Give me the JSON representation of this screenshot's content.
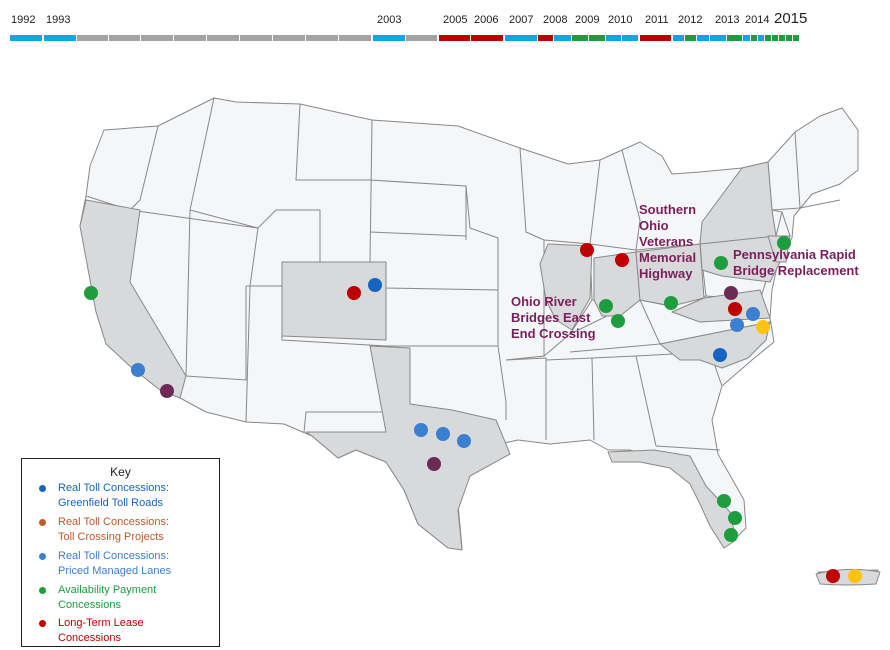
{
  "colors": {
    "greenfield": "#1565c0",
    "crossing": "#c0582a",
    "managed_lanes": "#3b7fd0",
    "availability": "#1e9d3f",
    "lease": "#c00000",
    "callout": "#7b1f5c",
    "state_fill": "#f5f6f8",
    "state_highlight": "#d8d9da",
    "state_border": "#888888",
    "timeline_blue": "#0ea5e9",
    "timeline_gray": "#a3a3a3",
    "timeline_red": "#c00000",
    "timeline_green": "#1e9d3f"
  },
  "timeline": {
    "years": [
      "1992",
      "1993",
      "2003",
      "2005",
      "2006",
      "2007",
      "2008",
      "2009",
      "2010",
      "2011",
      "2012",
      "2013",
      "2014",
      "2015"
    ],
    "current_year": "2015"
  },
  "callouts": {
    "southern_ohio": "Southern Ohio Veterans Memorial Highway",
    "ohio_river": "Ohio River Bridges East End Crossing",
    "pennsylvania": "Pennsylvania Rapid Bridge Replacement"
  },
  "key": {
    "title": "Key",
    "items": [
      {
        "label": "Real Toll Concessions: Greenfield Toll Roads",
        "color": "#1565c0"
      },
      {
        "label": "Real Toll Concessions: Toll Crossing Projects",
        "color": "#c0582a"
      },
      {
        "label": "Real Toll Concessions: Priced Managed Lanes",
        "color": "#3b7fd0"
      },
      {
        "label": "Availability Payment Concessions",
        "color": "#1e9d3f"
      },
      {
        "label": "Long-Term Lease Concessions",
        "color": "#c00000"
      }
    ]
  },
  "map_points": [
    {
      "state": "California",
      "category": "availability"
    },
    {
      "state": "California",
      "category": "managed_lanes"
    },
    {
      "state": "California",
      "category": "crossing"
    },
    {
      "state": "Colorado",
      "category": "lease"
    },
    {
      "state": "Colorado",
      "category": "greenfield"
    },
    {
      "state": "Texas",
      "category": "managed_lanes"
    },
    {
      "state": "Texas",
      "category": "managed_lanes"
    },
    {
      "state": "Texas",
      "category": "managed_lanes"
    },
    {
      "state": "Texas",
      "category": "crossing"
    },
    {
      "state": "Illinois",
      "category": "lease"
    },
    {
      "state": "Indiana",
      "category": "lease"
    },
    {
      "state": "Indiana",
      "category": "availability"
    },
    {
      "state": "Indiana",
      "category": "availability"
    },
    {
      "state": "Ohio",
      "category": "availability"
    },
    {
      "state": "Pennsylvania",
      "category": "availability"
    },
    {
      "state": "New Jersey",
      "category": "availability"
    },
    {
      "state": "Virginia",
      "category": "crossing"
    },
    {
      "state": "Virginia",
      "category": "lease"
    },
    {
      "state": "Virginia",
      "category": "managed_lanes"
    },
    {
      "state": "Virginia",
      "category": "managed_lanes"
    },
    {
      "state": "Virginia",
      "category": "toll_crossing_orange"
    },
    {
      "state": "North Carolina",
      "category": "greenfield"
    },
    {
      "state": "Florida",
      "category": "availability"
    },
    {
      "state": "Florida",
      "category": "availability"
    },
    {
      "state": "Florida",
      "category": "availability"
    },
    {
      "state": "Puerto Rico",
      "category": "lease"
    },
    {
      "state": "Puerto Rico",
      "category": "toll_crossing_orange"
    }
  ]
}
